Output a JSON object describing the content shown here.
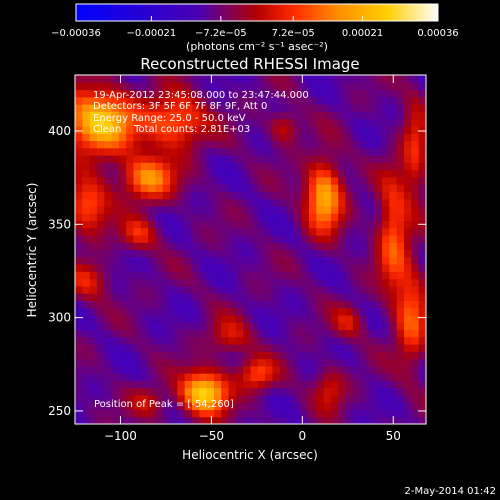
{
  "chart_data": {
    "type": "heatmap",
    "title": "Reconstructed RHESSI Image",
    "xlabel": "Heliocentric X (arcsec)",
    "ylabel": "Heliocentric Y (arcsec)",
    "xlim": [
      -125,
      68
    ],
    "ylim": [
      243,
      430
    ],
    "x_ticks": [
      -100,
      -50,
      0,
      50
    ],
    "y_ticks": [
      250,
      300,
      350,
      400
    ],
    "x_tick_labels": [
      "−100",
      "−50",
      "0",
      "50"
    ],
    "y_tick_labels": [
      "250",
      "300",
      "350",
      "400"
    ],
    "colorbar": {
      "range": [
        -0.00036,
        0.00036
      ],
      "tick_values": [
        -0.00036,
        -0.00021,
        -7.2e-05,
        7.2e-05,
        0.00021,
        0.00036
      ],
      "tick_labels": [
        "−0.00036",
        "−0.00021",
        "−7.2e−05",
        "7.2e−05",
        "0.00021",
        "0.00036"
      ],
      "unit_label": "(photons cm⁻² s⁻¹ asec⁻²)",
      "colors": [
        "#0000ff",
        "#4a00b0",
        "#b30000",
        "#ff2a00",
        "#ff8a00",
        "#ffd000",
        "#ffffff"
      ]
    },
    "annotations": [
      "19-Apr-2012 23:45:08.000 to 23:47:44.000",
      "Detectors: 3F 5F 6F 7F 8F 9F, Att 0",
      "Energy Range: 25.0 - 50.0 keV",
      "Clean    Total counts: 2.81E+03"
    ],
    "peak_label": "Position of Peak = [-54,260]",
    "peak": {
      "x": -54,
      "y": 260
    },
    "footer": "2-May-2014 01:42",
    "sources": [
      {
        "x": -112,
        "y": 405,
        "sx": 14,
        "sy": 12,
        "amp": 0.00034
      },
      {
        "x": -85,
        "y": 375,
        "sx": 10,
        "sy": 8,
        "amp": 0.00026
      },
      {
        "x": -70,
        "y": 405,
        "sx": 12,
        "sy": 10,
        "amp": 0.00022
      },
      {
        "x": -118,
        "y": 360,
        "sx": 8,
        "sy": 10,
        "amp": 0.0002
      },
      {
        "x": -90,
        "y": 345,
        "sx": 7,
        "sy": 6,
        "amp": 0.00014
      },
      {
        "x": -118,
        "y": 320,
        "sx": 8,
        "sy": 7,
        "amp": 0.00013
      },
      {
        "x": 12,
        "y": 365,
        "sx": 7,
        "sy": 13,
        "amp": 0.0003
      },
      {
        "x": 50,
        "y": 345,
        "sx": 6,
        "sy": 22,
        "amp": 0.0002
      },
      {
        "x": 60,
        "y": 300,
        "sx": 6,
        "sy": 18,
        "amp": 0.00019
      },
      {
        "x": 62,
        "y": 390,
        "sx": 5,
        "sy": 20,
        "amp": 0.00014
      },
      {
        "x": -40,
        "y": 290,
        "sx": 8,
        "sy": 7,
        "amp": 0.00012
      },
      {
        "x": -54,
        "y": 260,
        "sx": 9,
        "sy": 8,
        "amp": 0.00036
      },
      {
        "x": -25,
        "y": 270,
        "sx": 7,
        "sy": 6,
        "amp": 0.00018
      },
      {
        "x": 15,
        "y": 262,
        "sx": 6,
        "sy": 8,
        "amp": 0.00012
      },
      {
        "x": -85,
        "y": 255,
        "sx": 7,
        "sy": 6,
        "amp": 0.0001
      },
      {
        "x": -10,
        "y": 402,
        "sx": 6,
        "sy": 6,
        "amp": 0.00012
      },
      {
        "x": 25,
        "y": 298,
        "sx": 6,
        "sy": 6,
        "amp": 0.00011
      }
    ]
  }
}
